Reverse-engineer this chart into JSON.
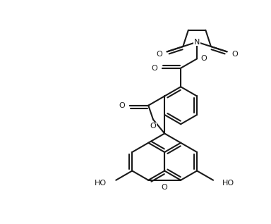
{
  "bg": "#ffffff",
  "lc": "#1a1a1a",
  "lw": 1.5,
  "figsize": [
    3.84,
    3.18
  ],
  "dpi": 100,
  "xlim": [
    -1.9,
    1.9
  ],
  "ylim": [
    -1.65,
    1.65
  ]
}
